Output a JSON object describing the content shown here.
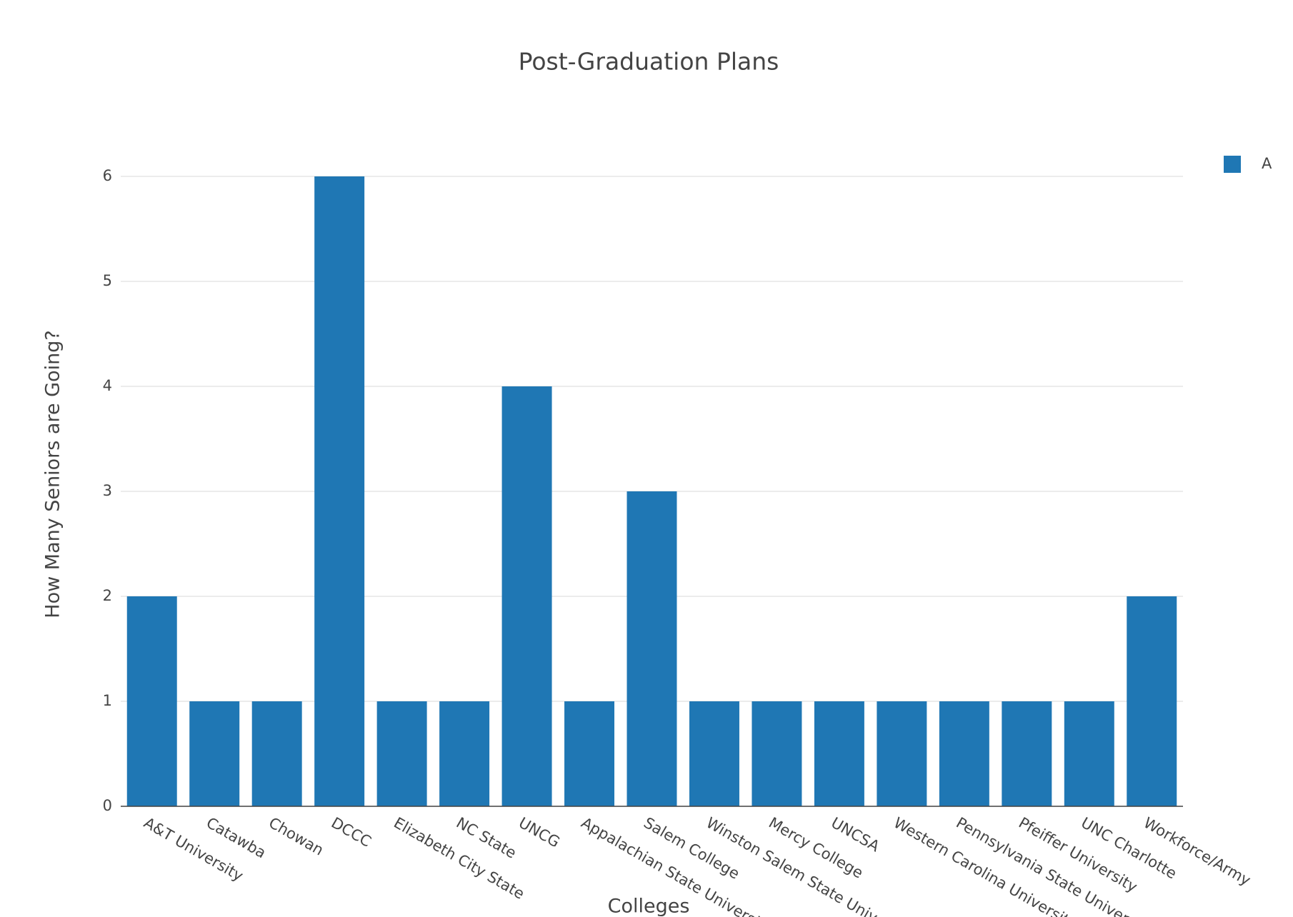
{
  "chart_data": {
    "type": "bar",
    "title": "Post-Graduation Plans",
    "x_label": "Colleges",
    "y_label": "How Many Seniors are Going?",
    "categories": [
      "A&T University",
      "Catawba",
      "Chowan",
      "DCCC",
      "Elizabeth City State",
      "NC State",
      "UNCG",
      "Appalachian State University",
      "Salem College",
      "Winston Salem State University",
      "Mercy College",
      "UNCSA",
      "Western Carolina University",
      "Pennsylvania State University",
      "Pfeiffer University",
      "UNC Charlotte",
      "Workforce/Army"
    ],
    "series": [
      {
        "name": "A",
        "color": "#1f77b4",
        "values": [
          2,
          1,
          1,
          6,
          1,
          1,
          4,
          1,
          3,
          1,
          1,
          1,
          1,
          1,
          1,
          1,
          2
        ]
      }
    ],
    "ylim": [
      0,
      6.5
    ],
    "yticks": [
      0,
      1,
      2,
      3,
      4,
      5,
      6
    ],
    "grid": true,
    "legend": "top-right"
  }
}
